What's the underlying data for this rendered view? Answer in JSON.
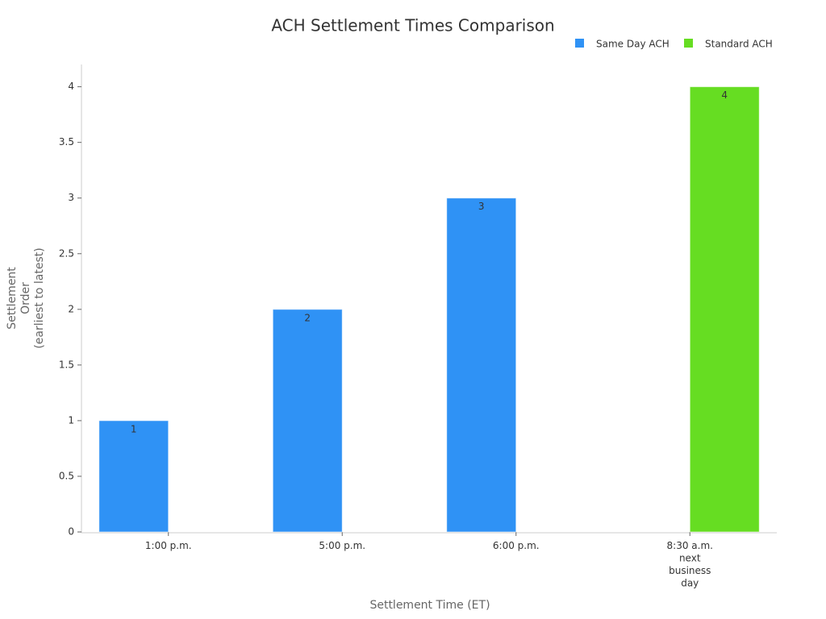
{
  "chart_data": {
    "type": "bar",
    "title": "ACH Settlement Times Comparison",
    "x_label": "Settlement Time (ET)",
    "y_label": [
      "Settlement",
      "Order",
      "(earliest to latest)"
    ],
    "categories": [
      "1:00 p.m.",
      "5:00 p.m.",
      "6:00 p.m.",
      "8:30 a.m. next business day"
    ],
    "series": [
      {
        "name": "Same Day ACH",
        "color": "#2f92f5",
        "values": [
          1,
          2,
          3,
          null
        ]
      },
      {
        "name": "Standard ACH",
        "color": "#66dd22",
        "values": [
          null,
          null,
          null,
          4
        ]
      }
    ],
    "ylim": [
      0,
      4.2
    ],
    "yticks": [
      0,
      0.5,
      1,
      1.5,
      2,
      2.5,
      3,
      3.5,
      4
    ],
    "legend": "top-right",
    "grid": false
  }
}
